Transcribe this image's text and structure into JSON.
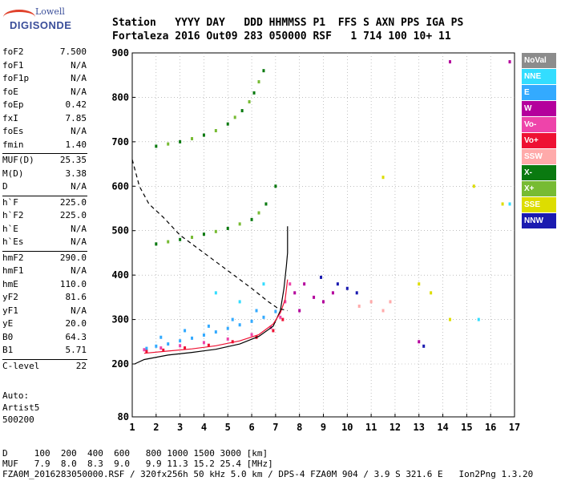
{
  "logo": {
    "line1": "Lowell",
    "line2": "DIGISONDE"
  },
  "header": {
    "line1": "Station   YYYY DAY   DDD HHMMSS P1  FFS S AXN PPS IGA PS",
    "line2": "Fortaleza 2016 Out09 283 050000 RSF   1 714 100 10+ 11"
  },
  "params": [
    {
      "k": "foF2",
      "v": "7.500"
    },
    {
      "k": "foF1",
      "v": "N/A"
    },
    {
      "k": "foF1p",
      "v": "N/A"
    },
    {
      "k": "foE",
      "v": "N/A"
    },
    {
      "k": "foEp",
      "v": "0.42"
    },
    {
      "k": "fxI",
      "v": "7.85"
    },
    {
      "k": "foEs",
      "v": "N/A"
    },
    {
      "k": "fmin",
      "v": "1.40"
    },
    {
      "k": "MUF(D)",
      "v": "25.35"
    },
    {
      "k": "M(D)",
      "v": "3.38"
    },
    {
      "k": "D",
      "v": "N/A"
    },
    {
      "k": "h`F",
      "v": "225.0"
    },
    {
      "k": "h`F2",
      "v": "225.0"
    },
    {
      "k": "h`E",
      "v": "N/A"
    },
    {
      "k": "h`Es",
      "v": "N/A"
    },
    {
      "k": "hmF2",
      "v": "290.0"
    },
    {
      "k": "hmF1",
      "v": "N/A"
    },
    {
      "k": "hmE",
      "v": "110.0"
    },
    {
      "k": "yF2",
      "v": "81.6"
    },
    {
      "k": "yF1",
      "v": "N/A"
    },
    {
      "k": "yE",
      "v": "20.0"
    },
    {
      "k": "B0",
      "v": "64.3"
    },
    {
      "k": "B1",
      "v": "5.71"
    },
    {
      "k": "C-level",
      "v": "22"
    }
  ],
  "auto": {
    "line1": "Auto:",
    "line2": "Artist5",
    "line3": "500200"
  },
  "footer": {
    "line1": "D     100  200  400  600   800 1000 1500 3000 [km]",
    "line2": "MUF   7.9  8.0  8.3  9.0   9.9 11.3 15.2 25.4 [MHz]",
    "line3": "FZA0M_2016283050000.RSF / 320fx256h 50 kHz 5.0 km / DPS-4 FZA0M 904 / 3.9 S 321.6 E   Ion2Png 1.3.20"
  },
  "legend": [
    {
      "label": "NoVal",
      "color": "#8c8c8c"
    },
    {
      "label": "NNE",
      "color": "#33ddff"
    },
    {
      "label": "E",
      "color": "#33aaff"
    },
    {
      "label": "W",
      "color": "#b4009c"
    },
    {
      "label": "Vo-",
      "color": "#ee44aa"
    },
    {
      "label": "Vo+",
      "color": "#ee1133"
    },
    {
      "label": "SSW",
      "color": "#ffaaaa"
    },
    {
      "label": "X-",
      "color": "#0a7a10"
    },
    {
      "label": "X+",
      "color": "#77bb33"
    },
    {
      "label": "SSE",
      "color": "#dddd00"
    },
    {
      "label": "NNW",
      "color": "#1a1ab0"
    }
  ],
  "chart_data": {
    "type": "scatter",
    "title": "",
    "xlabel": "",
    "ylabel": "",
    "xlim": [
      1,
      17
    ],
    "ylim": [
      80,
      900
    ],
    "x_ticks": [
      1,
      2,
      3,
      4,
      5,
      6,
      7,
      8,
      9,
      10,
      11,
      12,
      13,
      14,
      15,
      16,
      17
    ],
    "y_ticks": [
      80,
      200,
      300,
      400,
      500,
      600,
      700,
      800,
      900
    ],
    "grid": true,
    "series": [
      {
        "name": "E",
        "color": "#33aaff",
        "points": [
          [
            1.6,
            235
          ],
          [
            2.0,
            240
          ],
          [
            2.5,
            245
          ],
          [
            3.0,
            252
          ],
          [
            3.5,
            258
          ],
          [
            4.0,
            265
          ],
          [
            4.5,
            272
          ],
          [
            5.0,
            280
          ],
          [
            5.5,
            288
          ],
          [
            6.0,
            296
          ],
          [
            6.5,
            305
          ],
          [
            7.0,
            318
          ],
          [
            2.2,
            260
          ],
          [
            3.2,
            275
          ],
          [
            4.2,
            285
          ],
          [
            5.2,
            300
          ],
          [
            6.2,
            320
          ]
        ]
      },
      {
        "name": "Vo-",
        "color": "#ee44aa",
        "points": [
          [
            1.5,
            232
          ],
          [
            2.2,
            236
          ],
          [
            3.0,
            241
          ],
          [
            4.0,
            248
          ],
          [
            5.0,
            256
          ],
          [
            6.0,
            266
          ],
          [
            6.8,
            282
          ],
          [
            7.2,
            305
          ],
          [
            7.4,
            340
          ],
          [
            7.6,
            380
          ]
        ]
      },
      {
        "name": "Vo+",
        "color": "#ee1133",
        "points": [
          [
            1.6,
            228
          ],
          [
            2.3,
            231
          ],
          [
            3.2,
            236
          ],
          [
            4.2,
            242
          ],
          [
            5.2,
            250
          ],
          [
            6.2,
            260
          ],
          [
            6.9,
            275
          ],
          [
            7.3,
            300
          ]
        ]
      },
      {
        "name": "X-",
        "color": "#0a7a10",
        "points": [
          [
            2.0,
            470
          ],
          [
            3.0,
            480
          ],
          [
            4.0,
            492
          ],
          [
            5.0,
            505
          ],
          [
            6.0,
            525
          ],
          [
            6.6,
            560
          ],
          [
            7.0,
            600
          ],
          [
            2.0,
            690
          ],
          [
            3.0,
            700
          ],
          [
            4.0,
            715
          ],
          [
            5.0,
            740
          ],
          [
            5.6,
            770
          ],
          [
            6.1,
            810
          ],
          [
            6.5,
            860
          ]
        ]
      },
      {
        "name": "X+",
        "color": "#77bb33",
        "points": [
          [
            2.5,
            475
          ],
          [
            3.5,
            485
          ],
          [
            4.5,
            498
          ],
          [
            5.5,
            515
          ],
          [
            6.3,
            540
          ],
          [
            2.5,
            695
          ],
          [
            3.5,
            707
          ],
          [
            4.5,
            725
          ],
          [
            5.3,
            755
          ],
          [
            5.9,
            790
          ],
          [
            6.3,
            835
          ]
        ]
      },
      {
        "name": "W",
        "color": "#b4009c",
        "points": [
          [
            7.8,
            360
          ],
          [
            8.2,
            380
          ],
          [
            8.6,
            350
          ],
          [
            9.0,
            340
          ],
          [
            9.4,
            360
          ],
          [
            8.0,
            320
          ],
          [
            13.0,
            250
          ],
          [
            14.3,
            880
          ],
          [
            16.8,
            880
          ]
        ]
      },
      {
        "name": "NNW",
        "color": "#1a1ab0",
        "points": [
          [
            9.6,
            380
          ],
          [
            10.0,
            370
          ],
          [
            10.4,
            360
          ],
          [
            8.9,
            395
          ],
          [
            13.2,
            240
          ]
        ]
      },
      {
        "name": "SSE",
        "color": "#dddd00",
        "points": [
          [
            13.0,
            380
          ],
          [
            13.5,
            360
          ],
          [
            14.3,
            300
          ],
          [
            15.3,
            600
          ],
          [
            16.5,
            560
          ],
          [
            11.5,
            620
          ]
        ]
      },
      {
        "name": "SSW",
        "color": "#ffaaaa",
        "points": [
          [
            10.5,
            330
          ],
          [
            11.0,
            340
          ],
          [
            11.5,
            320
          ],
          [
            11.8,
            340
          ]
        ]
      },
      {
        "name": "NNE",
        "color": "#33ddff",
        "points": [
          [
            4.5,
            360
          ],
          [
            5.5,
            340
          ],
          [
            6.5,
            380
          ],
          [
            15.5,
            300
          ],
          [
            16.8,
            560
          ]
        ]
      }
    ],
    "curves": [
      {
        "name": "profile",
        "style": "solid",
        "points": [
          [
            1.1,
            200
          ],
          [
            1.5,
            210
          ],
          [
            2.5,
            220
          ],
          [
            3.5,
            226
          ],
          [
            4.5,
            233
          ],
          [
            5.5,
            245
          ],
          [
            6.3,
            262
          ],
          [
            6.9,
            285
          ],
          [
            7.2,
            320
          ],
          [
            7.35,
            370
          ],
          [
            7.45,
            420
          ],
          [
            7.5,
            450
          ],
          [
            7.5,
            510
          ]
        ]
      },
      {
        "name": "trace",
        "style": "solid",
        "color": "#ee1133",
        "points": [
          [
            1.5,
            224
          ],
          [
            2.5,
            229
          ],
          [
            3.5,
            234
          ],
          [
            4.5,
            241
          ],
          [
            5.5,
            252
          ],
          [
            6.3,
            266
          ],
          [
            6.9,
            290
          ],
          [
            7.2,
            315
          ],
          [
            7.4,
            345
          ],
          [
            7.5,
            390
          ]
        ]
      },
      {
        "name": "model",
        "style": "dashed",
        "points": [
          [
            1.0,
            660
          ],
          [
            1.3,
            600
          ],
          [
            1.7,
            560
          ],
          [
            2.3,
            530
          ],
          [
            3.0,
            490
          ],
          [
            4.0,
            450
          ],
          [
            5.0,
            410
          ],
          [
            6.0,
            370
          ],
          [
            6.7,
            340
          ],
          [
            7.1,
            325
          ],
          [
            7.5,
            320
          ]
        ]
      }
    ]
  }
}
